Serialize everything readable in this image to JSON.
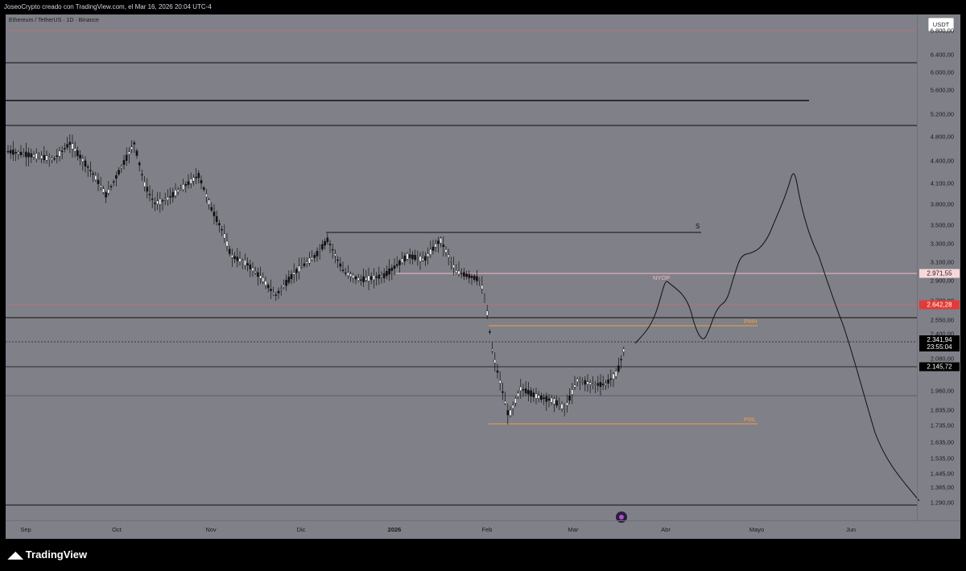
{
  "header": {
    "caption": "JoseoCrypto creado con TradingView.com, el Mar 16, 2026 20:04 UTC-4"
  },
  "chart": {
    "symbol": "Ethereum / TetherUS · 1D · Binance",
    "currency_button": "USDT",
    "watermark_icon": "tradingview-watermark-icon"
  },
  "price_axis": {
    "ticks": [
      "6.800,00",
      "6.400,00",
      "6.000,00",
      "5.600,00",
      "5.200,00",
      "4.800,00",
      "4.400,00",
      "4.100,00",
      "3.800,00",
      "3.500,00",
      "3.300,00",
      "3.100,00",
      "2.900,00",
      "2.700,00",
      "2.550,00",
      "2.400,00",
      "2.240,00",
      "2.080,00",
      "1.960,00",
      "1.835,00",
      "1.735,00",
      "1.635,00",
      "1.535,00",
      "1.445,00",
      "1.365,00",
      "1.290,00"
    ],
    "labels": [
      {
        "text": "2.971,55",
        "bg": "#f8d7da",
        "fg": "#1b1b1b"
      },
      {
        "text": "2.642,28",
        "bg": "#e53935",
        "fg": "#ffffff"
      },
      {
        "text": "2.341,94",
        "sub": "23:55:04",
        "bg": "#000000",
        "fg": "#ffffff"
      },
      {
        "text": "2.145,72",
        "bg": "#000000",
        "fg": "#ffffff"
      }
    ]
  },
  "time_axis": {
    "labels": [
      "Sep",
      "Oct",
      "Nov",
      "Dic",
      "2026",
      "Feb",
      "Mar",
      "Abr",
      "Mayo",
      "Jun"
    ]
  },
  "annotations": {
    "s": "S",
    "nyop": "NYOP",
    "pmh": "PMH",
    "pml": "PML"
  },
  "colors": {
    "chart_bg": "#7f8088",
    "orange": "#f0a040",
    "pink": "#f4b8c8",
    "red": "#e53935"
  },
  "footer": {
    "logo_text": "TradingView"
  }
}
